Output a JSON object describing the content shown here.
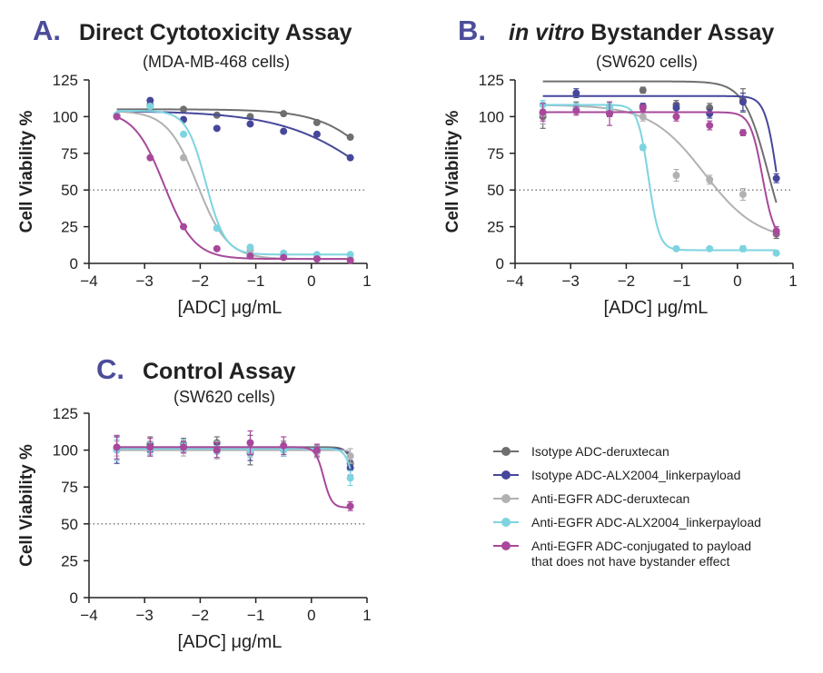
{
  "colors": {
    "isotype_dxd": "#6f6f71",
    "isotype_alx": "#46479a",
    "egfr_dxd": "#b1b1b3",
    "egfr_alx": "#7dd4e0",
    "egfr_nobystander": "#a8489b",
    "letter": "#4b4c9a"
  },
  "legend": [
    {
      "key": "isotype_dxd",
      "label": [
        "Isotype ADC-deruxtecan"
      ]
    },
    {
      "key": "isotype_alx",
      "label": [
        "Isotype ADC-ALX2004_linkerpayload"
      ]
    },
    {
      "key": "egfr_dxd",
      "label": [
        "Anti-EGFR ADC-deruxtecan"
      ]
    },
    {
      "key": "egfr_alx",
      "label": [
        "Anti-EGFR ADC-ALX2004_linkerpayload"
      ]
    },
    {
      "key": "egfr_nobystander",
      "label": [
        "Anti-EGFR ADC-conjugated to payload",
        "that does not have bystander effect"
      ]
    }
  ],
  "chart_data": [
    {
      "id": "A",
      "type": "scatter",
      "letter": "A.",
      "title": "Direct Cytotoxicity Assay",
      "subtitle": "(MDA-MB-468 cells)",
      "xlabel": "[ADC] μg/mL",
      "ylabel": "Cell Viability %",
      "xlim": [
        -4,
        1
      ],
      "ylim": [
        0,
        125
      ],
      "xticks": [
        "−4",
        "−3",
        "−2",
        "−1",
        "0",
        "1"
      ],
      "yticks": [
        "0",
        "25",
        "50",
        "75",
        "100",
        "125"
      ],
      "reference_line": 50,
      "x": [
        -3.5,
        -2.9,
        -2.3,
        -1.7,
        -1.1,
        -0.5,
        0.1,
        0.7
      ],
      "series": [
        {
          "key": "isotype_dxd",
          "values": [
            101,
            108,
            105,
            101,
            100,
            102,
            96,
            86
          ],
          "fit": {
            "top": 105,
            "bottom": 0,
            "logec50": 1.5,
            "hill": 0.8
          }
        },
        {
          "key": "isotype_alx",
          "values": [
            100,
            111,
            98,
            92,
            95,
            90,
            88,
            72
          ],
          "fit": {
            "top": 104,
            "bottom": 0,
            "logec50": 1.4,
            "hill": 0.5
          }
        },
        {
          "key": "egfr_dxd",
          "values": [
            101,
            107,
            72,
            24,
            9,
            5,
            4,
            3
          ],
          "fit": {
            "top": 104,
            "bottom": 3,
            "logec50": -2.05,
            "hill": 1.6
          }
        },
        {
          "key": "egfr_alx",
          "values": [
            101,
            107,
            88,
            24,
            11,
            7,
            6,
            6
          ],
          "fit": {
            "top": 104,
            "bottom": 6,
            "logec50": -1.9,
            "hill": 2.5
          }
        },
        {
          "key": "egfr_nobystander",
          "values": [
            100,
            72,
            25,
            10,
            5,
            4,
            3,
            2
          ],
          "fit": {
            "top": 104,
            "bottom": 3,
            "logec50": -2.65,
            "hill": 1.6
          }
        }
      ]
    },
    {
      "id": "B",
      "type": "scatter",
      "letter": "B.",
      "title_italic": "in vitro",
      "title": "Bystander Assay",
      "subtitle": "(SW620 cells)",
      "xlabel": "[ADC] μg/mL",
      "ylabel": "Cell Viability %",
      "xlim": [
        -4,
        1
      ],
      "ylim": [
        0,
        125
      ],
      "xticks": [
        "−4",
        "−3",
        "−2",
        "−1",
        "0",
        "1"
      ],
      "yticks": [
        "0",
        "25",
        "50",
        "75",
        "100",
        "125"
      ],
      "reference_line": 50,
      "x": [
        -3.5,
        -2.9,
        -2.3,
        -1.7,
        -1.1,
        -0.5,
        0.1,
        0.7
      ],
      "series": [
        {
          "key": "isotype_dxd",
          "values": [
            100,
            107,
            103,
            118,
            108,
            106,
            111,
            20
          ],
          "errors": [
            8,
            3,
            3,
            2,
            3,
            3,
            8,
            3
          ],
          "fit": {
            "top": 124,
            "bottom": 0,
            "logec50": 0.55,
            "hill": 2.0
          }
        },
        {
          "key": "isotype_alx",
          "values": [
            102,
            116,
            102,
            107,
            106,
            102,
            110,
            58
          ],
          "errors": [
            7,
            3,
            2,
            2,
            3,
            3,
            6,
            3
          ],
          "fit": {
            "top": 114,
            "bottom": 0,
            "logec50": 0.72,
            "hill": 4.0
          }
        },
        {
          "key": "egfr_dxd",
          "values": [
            102,
            105,
            107,
            100,
            60,
            57,
            47,
            22
          ],
          "errors": [
            7,
            3,
            3,
            3,
            4,
            3,
            4,
            3
          ],
          "fit": {
            "top": 108,
            "bottom": 15,
            "logec50": -0.6,
            "hill": 0.9
          }
        },
        {
          "key": "egfr_alx",
          "values": [
            108,
            106,
            106,
            79,
            10,
            10,
            10,
            7
          ],
          "errors": [
            3,
            3,
            3,
            2,
            1,
            1,
            2,
            1
          ],
          "fit": {
            "top": 108,
            "bottom": 9,
            "logec50": -1.6,
            "hill": 4.5
          }
        },
        {
          "key": "egfr_nobystander",
          "values": [
            103,
            104,
            102,
            106,
            100,
            94,
            89,
            22
          ],
          "errors": [
            6,
            3,
            8,
            2,
            3,
            3,
            2,
            3
          ],
          "fit": {
            "top": 103,
            "bottom": 15,
            "logec50": 0.45,
            "hill": 4.0
          }
        }
      ]
    },
    {
      "id": "C",
      "type": "scatter",
      "letter": "C.",
      "title": "Control Assay",
      "subtitle": "(SW620 cells)",
      "xlabel": "[ADC] μg/mL",
      "ylabel": "Cell Viability %",
      "xlim": [
        -4,
        1
      ],
      "ylim": [
        0,
        125
      ],
      "xticks": [
        "−4",
        "−3",
        "−2",
        "−1",
        "0",
        "1"
      ],
      "yticks": [
        "0",
        "25",
        "50",
        "75",
        "100",
        "125"
      ],
      "reference_line": 50,
      "x": [
        -3.5,
        -2.9,
        -2.3,
        -1.7,
        -1.1,
        -0.5,
        0.1,
        0.7
      ],
      "series": [
        {
          "key": "isotype_dxd",
          "values": [
            101,
            104,
            104,
            105,
            100,
            101,
            100,
            91
          ],
          "errors": [
            8,
            5,
            4,
            4,
            10,
            5,
            4,
            5
          ],
          "fit": {
            "top": 102,
            "bottom": 60,
            "logec50": 0.8,
            "hill": 6.0
          }
        },
        {
          "key": "isotype_alx",
          "values": [
            100,
            100,
            101,
            101,
            98,
            100,
            99,
            88
          ],
          "errors": [
            9,
            4,
            3,
            3,
            5,
            4,
            4,
            5
          ],
          "fit": {
            "top": 101,
            "bottom": 60,
            "logec50": 0.85,
            "hill": 6.0
          }
        },
        {
          "key": "egfr_dxd",
          "values": [
            101,
            102,
            100,
            100,
            99,
            100,
            99,
            96
          ],
          "errors": [
            5,
            4,
            4,
            6,
            4,
            4,
            4,
            5
          ],
          "fit": {
            "top": 100,
            "bottom": 70,
            "logec50": 0.95,
            "hill": 6.0
          }
        },
        {
          "key": "egfr_alx",
          "values": [
            100,
            101,
            103,
            99,
            100,
            100,
            100,
            81
          ],
          "errors": [
            7,
            4,
            4,
            4,
            4,
            4,
            4,
            5
          ],
          "fit": {
            "top": 101,
            "bottom": 60,
            "logec50": 0.75,
            "hill": 6.0
          }
        },
        {
          "key": "egfr_nobystander",
          "values": [
            102,
            102,
            102,
            100,
            105,
            103,
            100,
            62
          ],
          "errors": [
            8,
            6,
            4,
            5,
            8,
            6,
            4,
            3
          ],
          "fit": {
            "top": 102,
            "bottom": 61,
            "logec50": 0.22,
            "hill": 6.0
          }
        }
      ]
    }
  ]
}
